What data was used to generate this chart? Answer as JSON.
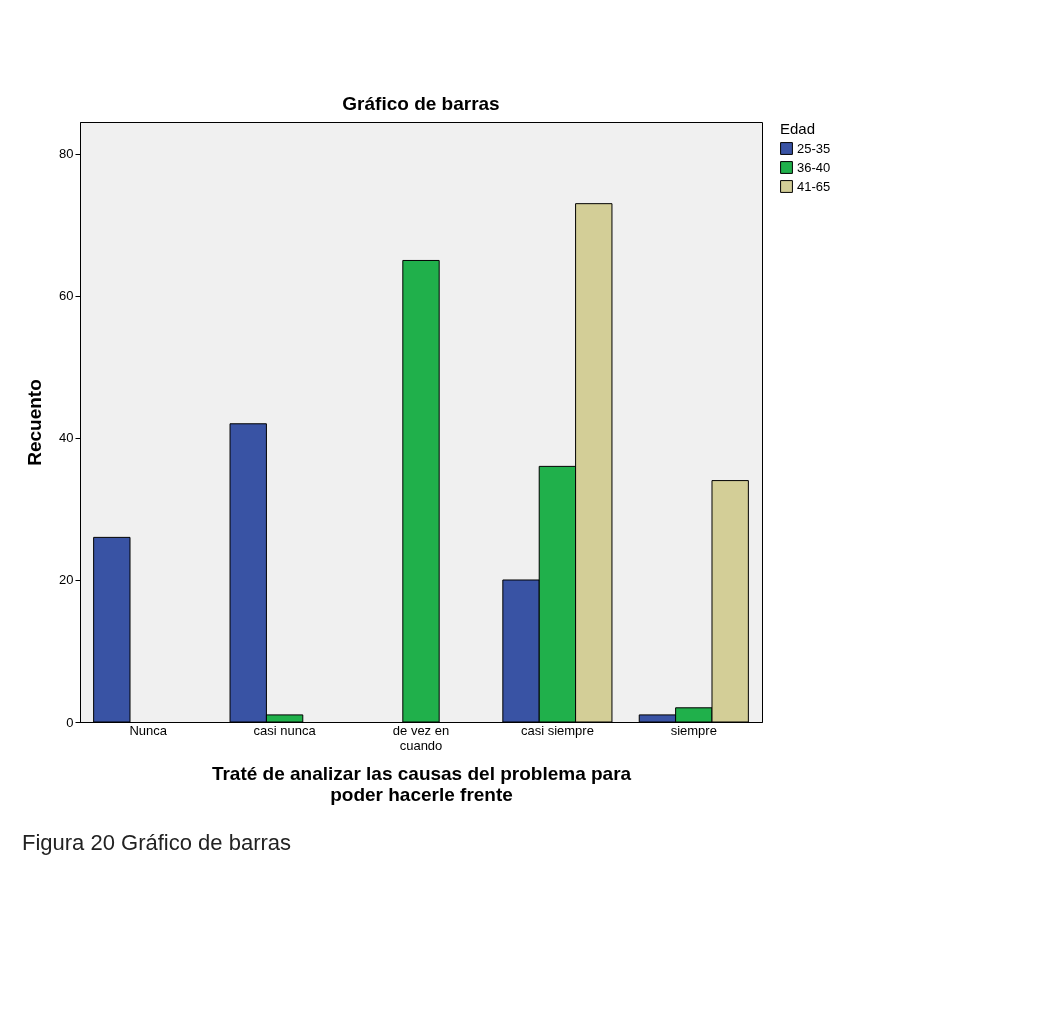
{
  "chart_data": {
    "type": "bar",
    "title": "Gráfico de barras",
    "xlabel": "Traté de analizar las causas del problema para poder hacerle frente",
    "ylabel": "Recuento",
    "legend_title": "Edad",
    "categories": [
      "Nunca",
      "casi nunca",
      "de vez en cuando",
      "casi siempre",
      "siempre"
    ],
    "series": [
      {
        "name": "25-35",
        "color": "#3953a4",
        "values": [
          26,
          42,
          null,
          20,
          1
        ]
      },
      {
        "name": "36-40",
        "color": "#20b04b",
        "values": [
          null,
          1,
          65,
          36,
          2
        ]
      },
      {
        "name": "41-65",
        "color": "#d3ce97",
        "values": [
          null,
          null,
          null,
          73,
          34
        ]
      }
    ],
    "ylim": [
      0,
      84.5
    ],
    "yticks": [
      0,
      20,
      40,
      60,
      80
    ],
    "grid": false,
    "legend": "top right",
    "annotations": [
      "Figura 20 Gráfico de barras"
    ]
  }
}
